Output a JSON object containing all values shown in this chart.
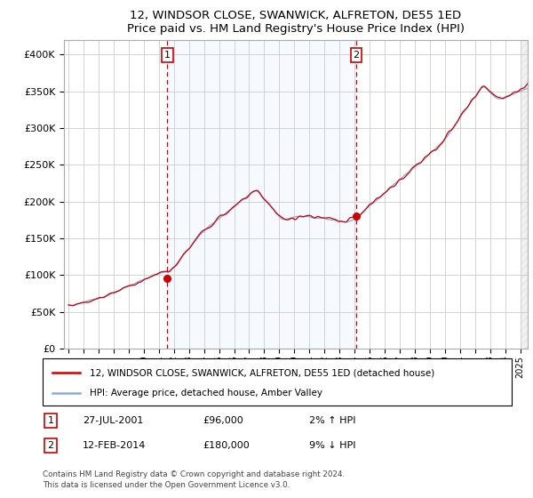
{
  "title": "12, WINDSOR CLOSE, SWANWICK, ALFRETON, DE55 1ED",
  "subtitle": "Price paid vs. HM Land Registry's House Price Index (HPI)",
  "legend_line1": "12, WINDSOR CLOSE, SWANWICK, ALFRETON, DE55 1ED (detached house)",
  "legend_line2": "HPI: Average price, detached house, Amber Valley",
  "footnote": "Contains HM Land Registry data © Crown copyright and database right 2024.\nThis data is licensed under the Open Government Licence v3.0.",
  "annotation1": {
    "label": "1",
    "date": "27-JUL-2001",
    "price": "£96,000",
    "hpi": "2% ↑ HPI"
  },
  "annotation2": {
    "label": "2",
    "date": "12-FEB-2014",
    "price": "£180,000",
    "hpi": "9% ↓ HPI"
  },
  "xmin": 1994.7,
  "xmax": 2025.5,
  "ymin": 0,
  "ymax": 420000,
  "yticks": [
    0,
    50000,
    100000,
    150000,
    200000,
    250000,
    300000,
    350000,
    400000
  ],
  "ytick_labels": [
    "£0",
    "£50K",
    "£100K",
    "£150K",
    "£200K",
    "£250K",
    "£300K",
    "£350K",
    "£400K"
  ],
  "vline1_x": 2001.57,
  "vline2_x": 2014.12,
  "point1_x": 2001.57,
  "point1_y": 96000,
  "point2_x": 2014.12,
  "point2_y": 180000,
  "price_color": "#cc0000",
  "hpi_color": "#88aadd",
  "vline_color": "#cc0000",
  "shade_color": "#ddeeff",
  "background_color": "#ffffff",
  "grid_color": "#cccccc",
  "xticks": [
    1995,
    1996,
    1997,
    1998,
    1999,
    2000,
    2001,
    2002,
    2003,
    2004,
    2005,
    2006,
    2007,
    2008,
    2009,
    2010,
    2011,
    2012,
    2013,
    2014,
    2015,
    2016,
    2017,
    2018,
    2019,
    2020,
    2021,
    2022,
    2023,
    2024,
    2025
  ]
}
